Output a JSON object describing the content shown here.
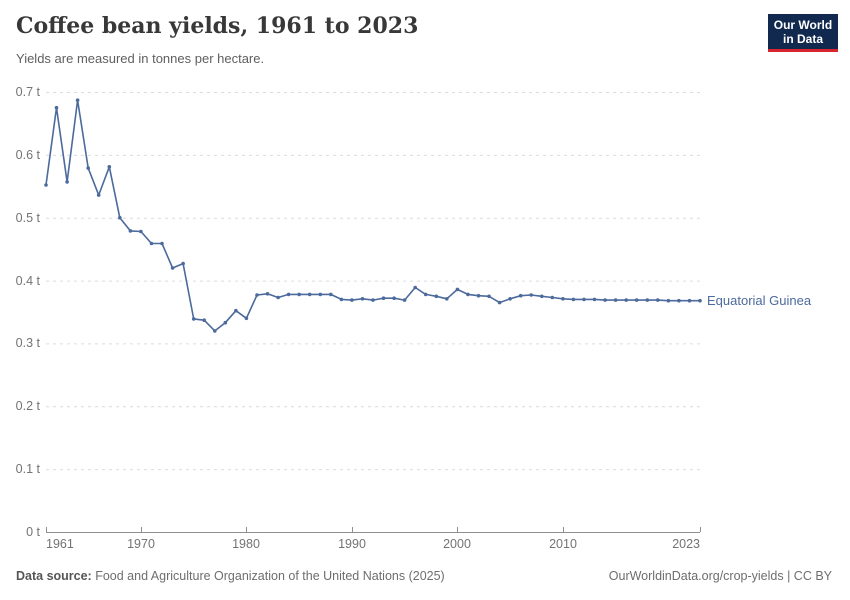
{
  "header": {
    "title": "Coffee bean yields, 1961 to 2023",
    "subtitle": "Yields are measured in tonnes per hectare."
  },
  "logo": {
    "line1": "Our World",
    "line2": "in Data",
    "bg_color": "#12294F",
    "accent_color": "#D8242F"
  },
  "chart_data": {
    "type": "line",
    "title": "Coffee bean yields, 1961 to 2023",
    "unit": "tonnes per hectare",
    "grid": true,
    "legend_position": "right-of-line-end",
    "ylim": [
      0,
      0.7
    ],
    "yticks": [
      0,
      0.1,
      0.2,
      0.3,
      0.4,
      0.5,
      0.6,
      0.7
    ],
    "ytick_labels": [
      "0 t",
      "0.1 t",
      "0.2 t",
      "0.3 t",
      "0.4 t",
      "0.5 t",
      "0.6 t",
      "0.7 t"
    ],
    "xticks": [
      1961,
      1970,
      1980,
      1990,
      2000,
      2010,
      2023
    ],
    "x": [
      1961,
      1962,
      1963,
      1964,
      1965,
      1966,
      1967,
      1968,
      1969,
      1970,
      1971,
      1972,
      1973,
      1974,
      1975,
      1976,
      1977,
      1978,
      1979,
      1980,
      1981,
      1982,
      1983,
      1984,
      1985,
      1986,
      1987,
      1988,
      1989,
      1990,
      1991,
      1992,
      1993,
      1994,
      1995,
      1996,
      1997,
      1998,
      1999,
      2000,
      2001,
      2002,
      2003,
      2004,
      2005,
      2006,
      2007,
      2008,
      2009,
      2010,
      2011,
      2012,
      2013,
      2014,
      2015,
      2016,
      2017,
      2018,
      2019,
      2020,
      2021,
      2022,
      2023
    ],
    "series": [
      {
        "name": "Equatorial Guinea",
        "color": "#4C6A9C",
        "values": [
          0.552,
          0.675,
          0.557,
          0.687,
          0.579,
          0.536,
          0.581,
          0.5,
          0.479,
          0.478,
          0.459,
          0.459,
          0.42,
          0.427,
          0.339,
          0.337,
          0.32,
          0.333,
          0.352,
          0.34,
          0.377,
          0.379,
          0.373,
          0.378,
          0.378,
          0.378,
          0.378,
          0.378,
          0.37,
          0.369,
          0.371,
          0.369,
          0.372,
          0.372,
          0.369,
          0.389,
          0.378,
          0.375,
          0.371,
          0.386,
          0.378,
          0.376,
          0.375,
          0.365,
          0.371,
          0.376,
          0.377,
          0.375,
          0.373,
          0.371,
          0.37,
          0.37,
          0.37,
          0.369,
          0.369,
          0.369,
          0.369,
          0.369,
          0.369,
          0.368,
          0.368,
          0.368,
          0.368
        ]
      }
    ],
    "style": {
      "gridline_color": "#dcdcdc",
      "axis_color": "#8f8f8f",
      "tick_label_color": "#737373"
    }
  },
  "footer": {
    "source_label": "Data source:",
    "source_text": " Food and Agriculture Organization of the United Nations (2025)",
    "credit": "OurWorldinData.org/crop-yields | CC BY"
  }
}
